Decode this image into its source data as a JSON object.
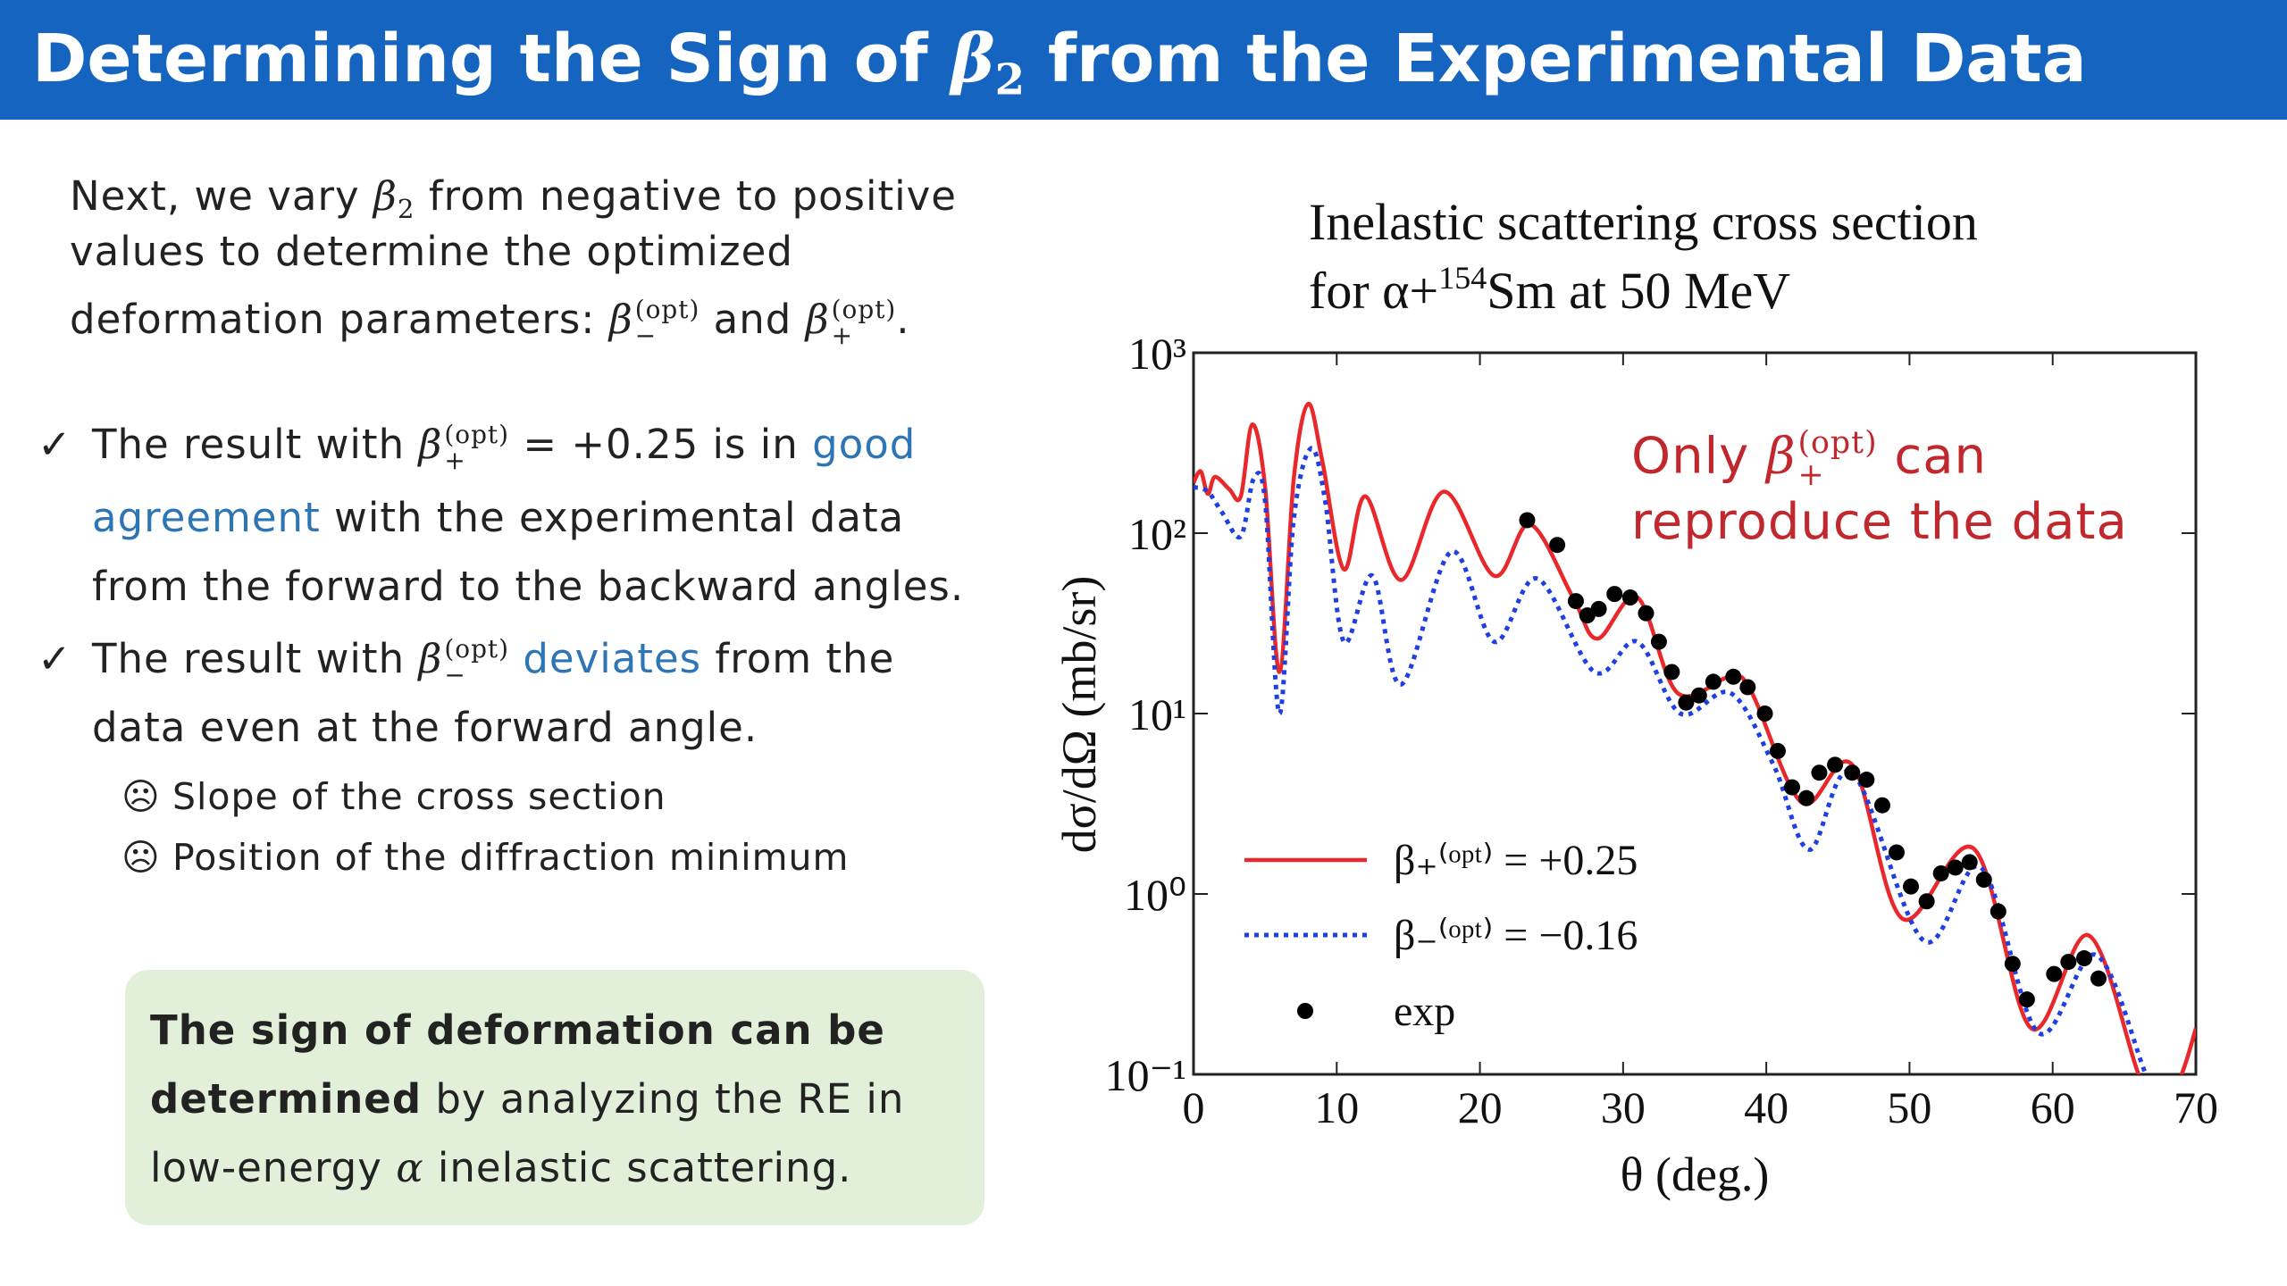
{
  "header": {
    "title": [
      "Determining the Sign of ",
      {
        "text": "β",
        "style": "math",
        "sub": "2"
      },
      " from the Experimental Data"
    ]
  },
  "intro": {
    "lines": [
      [
        "Next, we vary ",
        {
          "text": "β",
          "style": "math",
          "sub": "2"
        },
        " from negative to positive"
      ],
      [
        "values to determine the optimized"
      ],
      [
        "deformation parameters: ",
        {
          "text": "β",
          "style": "math",
          "sub": "−",
          "sup": "(opt)"
        },
        " and ",
        {
          "text": "β",
          "style": "math",
          "sub": "+",
          "sup": "(opt)"
        },
        "."
      ]
    ]
  },
  "bullets": [
    {
      "marker": "✓",
      "lines": [
        [
          "The result with ",
          {
            "text": "β",
            "style": "math",
            "sub": "+",
            "sup": "(opt)"
          },
          " = +0.25 is in ",
          {
            "text": "good",
            "color": "#2e75b6"
          }
        ],
        [
          {
            "text": "agreement",
            "color": "#2e75b6"
          },
          " with the experimental data"
        ],
        [
          "from the forward to the backward angles."
        ]
      ]
    },
    {
      "marker": "✓",
      "lines": [
        [
          "The result with ",
          {
            "text": "β",
            "style": "math",
            "sub": "−",
            "sup": "(opt)"
          },
          {
            "text": " deviates",
            "color": "#2e75b6"
          },
          " from the"
        ],
        [
          "data even at the forward angle."
        ]
      ]
    }
  ],
  "sub_bullets": [
    {
      "marker": "☹",
      "text": "Slope of the cross section"
    },
    {
      "marker": "☹",
      "text": "Position of the diffraction minimum"
    }
  ],
  "conclusion": {
    "lines": [
      [
        {
          "text": "The sign of deformation can be",
          "style": "bold"
        }
      ],
      [
        {
          "text": "determined",
          "style": "bold"
        },
        " by analyzing the RE in"
      ],
      [
        "low-energy ",
        {
          "text": "α",
          "style": "math"
        },
        " inelastic scattering."
      ]
    ]
  },
  "annotation": {
    "color": "#c0282d",
    "lines": [
      [
        "Only ",
        {
          "text": "β",
          "style": "math",
          "sub": "+",
          "sup": "(opt)"
        },
        " can"
      ],
      [
        "reproduce the data"
      ]
    ]
  },
  "chart_data": {
    "type": "line",
    "title": "Inelastic scattering cross section",
    "subtitle": {
      "pre": "for α+",
      "sup": "154",
      "post": "Sm at 50 MeV"
    },
    "x_label": "θ (deg.)",
    "y_label": "dσ/dΩ (mb/sr)",
    "yscale": "log",
    "xlim": [
      0,
      70
    ],
    "xticks": [
      0,
      10,
      20,
      30,
      40,
      50,
      60,
      70
    ],
    "ylim": [
      0.1,
      1000
    ],
    "yticks": [
      {
        "value": 0.1,
        "label": "10⁻¹"
      },
      {
        "value": 1,
        "label": "10⁰"
      },
      {
        "value": 10,
        "label": "10¹"
      },
      {
        "value": 100,
        "label": "10²"
      },
      {
        "value": 1000,
        "label": "10³"
      }
    ],
    "series": [
      {
        "name": "β₊⁽ᵒᵖᵗ⁾ = +0.25",
        "color": "#e8282b",
        "style": "solid",
        "x": [
          0,
          0.5,
          1,
          1.5,
          2.5,
          3.3,
          4.1,
          5.0,
          6.0,
          7.0,
          8.0,
          9.0,
          10.5,
          12,
          14.5,
          17.5,
          21,
          23.5,
          26.5,
          28.2,
          31,
          33.8,
          37.5,
          39,
          42.5,
          46,
          49.5,
          54.5,
          58.5,
          62.5,
          66,
          67.5,
          69,
          70
        ],
        "values": [
          190,
          220,
          165,
          205,
          175,
          160,
          400,
          180,
          17,
          200,
          520,
          250,
          63,
          160,
          55,
          170,
          58,
          112,
          44,
          26,
          44,
          13,
          16,
          13,
          3.2,
          5.2,
          0.73,
          1.78,
          0.18,
          0.59,
          0.1,
          0.06,
          0.1,
          0.18
        ]
      },
      {
        "name": "β₋⁽ᵒᵖᵗ⁾ = −0.16",
        "color": "#1f3fe0",
        "style": "dotted",
        "x": [
          0,
          1,
          2,
          3.3,
          4.2,
          5.0,
          6.0,
          7.0,
          8.2,
          9.2,
          10.5,
          12.5,
          14.5,
          18,
          21,
          24,
          28,
          31,
          34,
          37.5,
          40.5,
          43,
          46,
          51,
          55,
          59,
          63,
          66.5,
          68
        ],
        "values": [
          180,
          170,
          130,
          96,
          200,
          150,
          10,
          120,
          295,
          150,
          25,
          58,
          14.5,
          79,
          25,
          56,
          17,
          25,
          10,
          13,
          5.2,
          1.76,
          4.7,
          0.55,
          1.4,
          0.17,
          0.46,
          0.1,
          0.05
        ]
      },
      {
        "name": "exp",
        "color": "#000000",
        "style": "points",
        "x": [
          23.3,
          25.4,
          26.7,
          27.5,
          28.3,
          29.4,
          30.5,
          31.6,
          32.5,
          33.4,
          34.4,
          35.3,
          36.3,
          37.7,
          38.7,
          39.9,
          40.8,
          41.8,
          42.8,
          43.7,
          44.8,
          46.0,
          47.0,
          48.1,
          49.1,
          50.1,
          51.2,
          52.2,
          53.2,
          54.2,
          55.2,
          56.2,
          57.2,
          58.2,
          60.1,
          61.1,
          62.2,
          63.2
        ],
        "values": [
          118,
          86,
          42,
          35,
          38,
          46,
          44,
          36,
          25,
          17,
          11.5,
          12.6,
          15,
          16,
          14,
          10,
          6.2,
          3.9,
          3.4,
          4.7,
          5.2,
          4.7,
          4.3,
          3.1,
          1.7,
          1.1,
          0.91,
          1.3,
          1.4,
          1.5,
          1.2,
          0.8,
          0.41,
          0.26,
          0.36,
          0.42,
          0.44,
          0.34
        ]
      }
    ]
  }
}
